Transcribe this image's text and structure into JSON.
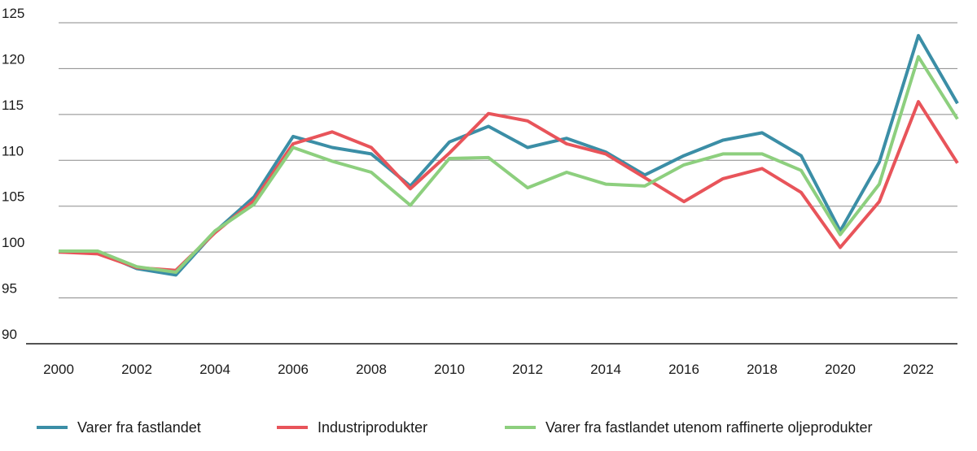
{
  "chart_data": {
    "type": "line",
    "title": "",
    "xlabel": "",
    "ylabel": "",
    "x": [
      2000,
      2001,
      2002,
      2003,
      2004,
      2005,
      2006,
      2007,
      2008,
      2009,
      2010,
      2011,
      2012,
      2013,
      2014,
      2015,
      2016,
      2017,
      2018,
      2019,
      2020,
      2021,
      2022,
      2023
    ],
    "xticks": [
      "2000",
      "2002",
      "2004",
      "2006",
      "2008",
      "2010",
      "2012",
      "2014",
      "2016",
      "2018",
      "2020",
      "2022"
    ],
    "yticks": [
      "90",
      "95",
      "100",
      "105",
      "110",
      "115",
      "120",
      "125"
    ],
    "xlim": [
      2000,
      2023
    ],
    "ylim": [
      90,
      125
    ],
    "grid": "horizontal",
    "legend_position": "bottom",
    "series": [
      {
        "name": "Varer fra fastlandet",
        "color": "#3b8ea6",
        "values": [
          100.0,
          100.0,
          98.2,
          97.5,
          102.2,
          106.0,
          112.6,
          111.4,
          110.7,
          107.2,
          112.0,
          113.7,
          111.4,
          112.4,
          110.9,
          108.4,
          110.5,
          112.2,
          113.0,
          110.5,
          102.3,
          109.8,
          123.6,
          116.2
        ]
      },
      {
        "name": "Industriprodukter",
        "color": "#e8545a",
        "values": [
          100.0,
          99.8,
          98.3,
          98.0,
          102.1,
          105.6,
          111.8,
          113.1,
          111.4,
          106.9,
          110.8,
          115.1,
          114.3,
          111.8,
          110.7,
          108.1,
          105.5,
          108.0,
          109.1,
          106.5,
          100.5,
          105.5,
          116.4,
          109.7
        ]
      },
      {
        "name": "Varer fra fastlandet utenom raffinerte oljeprodukter",
        "color": "#8dcf7e",
        "values": [
          100.1,
          100.1,
          98.4,
          97.8,
          102.3,
          105.2,
          111.4,
          109.9,
          108.7,
          105.1,
          110.2,
          110.3,
          107.0,
          108.7,
          107.4,
          107.2,
          109.5,
          110.7,
          110.7,
          108.9,
          101.9,
          107.4,
          121.3,
          114.5
        ]
      }
    ]
  }
}
